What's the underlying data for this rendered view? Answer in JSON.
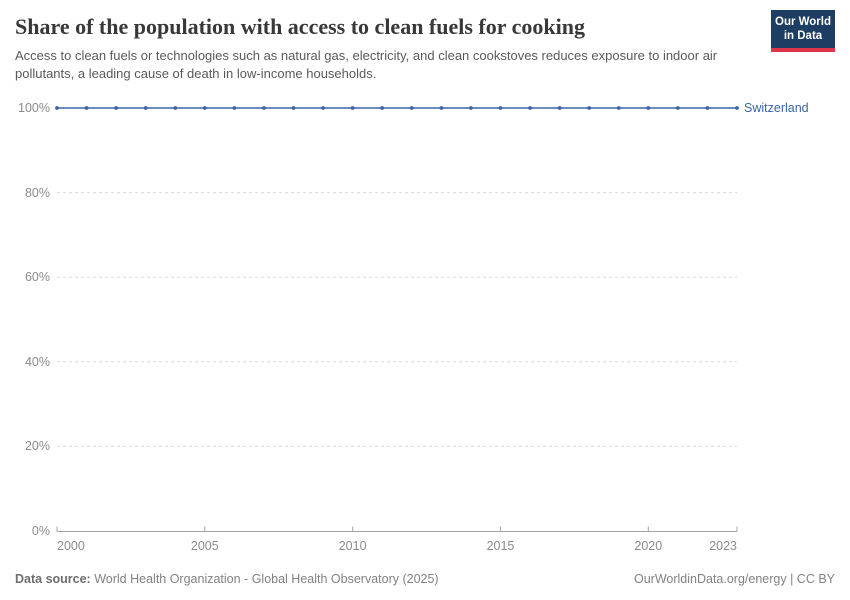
{
  "header": {
    "title": "Share of the population with access to clean fuels for cooking",
    "subtitle": "Access to clean fuels or technologies such as natural gas, electricity, and clean cookstoves reduces exposure to indoor air pollutants, a leading cause of death in low-income households.",
    "logo": {
      "line1": "Our World",
      "line2": "in Data",
      "bg_color": "#1d3d63",
      "stripe_color": "#dc354c"
    }
  },
  "chart_data": {
    "type": "line",
    "title": "Share of the population with access to clean fuels for cooking",
    "x": [
      2000,
      2001,
      2002,
      2003,
      2004,
      2005,
      2006,
      2007,
      2008,
      2009,
      2010,
      2011,
      2012,
      2013,
      2014,
      2015,
      2016,
      2017,
      2018,
      2019,
      2020,
      2021,
      2022,
      2023
    ],
    "series": [
      {
        "name": "Switzerland",
        "color": "#3d64a8",
        "values": [
          100,
          100,
          100,
          100,
          100,
          100,
          100,
          100,
          100,
          100,
          100,
          100,
          100,
          100,
          100,
          100,
          100,
          100,
          100,
          100,
          100,
          100,
          100,
          100
        ]
      }
    ],
    "xlim": [
      2000,
      2023
    ],
    "ylim": [
      0,
      100
    ],
    "x_ticks": [
      2000,
      2005,
      2010,
      2015,
      2020,
      2023
    ],
    "y_ticks": [
      "0%",
      "20%",
      "40%",
      "60%",
      "80%",
      "100%"
    ],
    "y_tick_values": [
      0,
      20,
      40,
      60,
      80,
      100
    ],
    "grid": "horizontal-dashed",
    "grid_color": "#dadada",
    "axis_color": "#a5a5a5",
    "tick_label_color": "#8b8b8b",
    "legend_position": "right-of-line"
  },
  "footer": {
    "datasource_label": "Data source:",
    "datasource_value": "World Health Organization - Global Health Observatory (2025)",
    "credit": "OurWorldinData.org/energy | CC BY"
  }
}
